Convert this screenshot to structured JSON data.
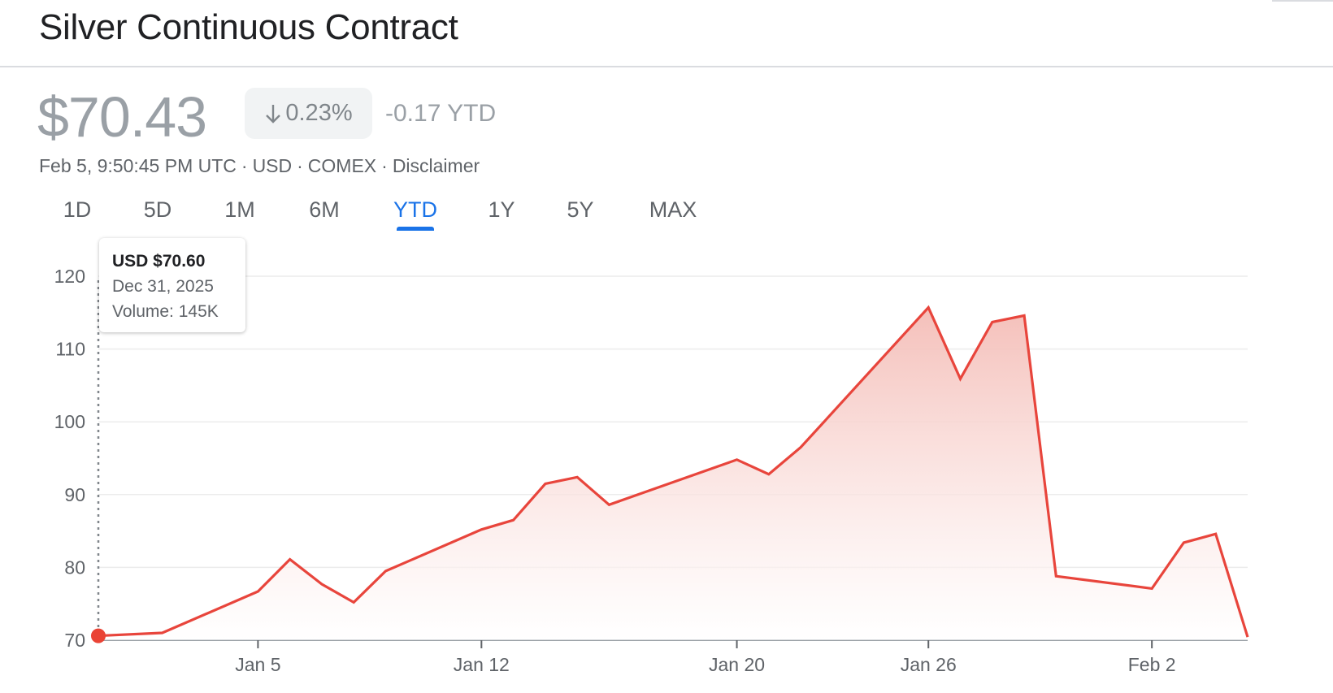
{
  "header": {
    "title": "Silver Continuous Contract"
  },
  "quote": {
    "price": "$70.43",
    "change_percent": "0.23%",
    "change_direction": "down",
    "ytd_change": "-0.17 YTD",
    "timestamp": "Feb 5, 9:50:45 PM UTC",
    "currency": "USD",
    "exchange": "COMEX",
    "disclaimer_label": "Disclaimer",
    "separator": "·"
  },
  "tabs": [
    {
      "label": "1D",
      "active": false
    },
    {
      "label": "5D",
      "active": false
    },
    {
      "label": "1M",
      "active": false
    },
    {
      "label": "6M",
      "active": false
    },
    {
      "label": "YTD",
      "active": true
    },
    {
      "label": "1Y",
      "active": false
    },
    {
      "label": "5Y",
      "active": false
    },
    {
      "label": "MAX",
      "active": false
    }
  ],
  "tooltip": {
    "price": "USD $70.60",
    "date": "Dec 31, 2025",
    "volume": "Volume: 145K"
  },
  "colors": {
    "line": "#e8453c",
    "fill_top": "#f4bcb6",
    "fill_bottom": "#ffffff",
    "grid": "#ececec",
    "axis": "#9aa0a6",
    "accent": "#1a73e8",
    "marker": "#ea4335"
  },
  "chart_data": {
    "type": "area",
    "title": "",
    "xlabel": "",
    "ylabel": "",
    "ylim": [
      70,
      120
    ],
    "xlim": [
      "2025-12-31",
      "2026-02-05"
    ],
    "yticks": [
      70,
      80,
      90,
      100,
      110,
      120
    ],
    "xticks": [
      {
        "date": "2026-01-05",
        "label": "Jan 5"
      },
      {
        "date": "2026-01-12",
        "label": "Jan 12"
      },
      {
        "date": "2026-01-20",
        "label": "Jan 20"
      },
      {
        "date": "2026-01-26",
        "label": "Jan 26"
      },
      {
        "date": "2026-02-02",
        "label": "Feb 2"
      }
    ],
    "grid": true,
    "series": [
      {
        "points": [
          {
            "date": "2025-12-31",
            "value": 70.6
          },
          {
            "date": "2026-01-02",
            "value": 71.0
          },
          {
            "date": "2026-01-05",
            "value": 76.7
          },
          {
            "date": "2026-01-06",
            "value": 81.1
          },
          {
            "date": "2026-01-07",
            "value": 77.7
          },
          {
            "date": "2026-01-08",
            "value": 75.2
          },
          {
            "date": "2026-01-09",
            "value": 79.5
          },
          {
            "date": "2026-01-12",
            "value": 85.2
          },
          {
            "date": "2026-01-13",
            "value": 86.5
          },
          {
            "date": "2026-01-14",
            "value": 91.5
          },
          {
            "date": "2026-01-15",
            "value": 92.4
          },
          {
            "date": "2026-01-16",
            "value": 88.6
          },
          {
            "date": "2026-01-20",
            "value": 94.8
          },
          {
            "date": "2026-01-21",
            "value": 92.8
          },
          {
            "date": "2026-01-22",
            "value": 96.5
          },
          {
            "date": "2026-01-23",
            "value": 101.3
          },
          {
            "date": "2026-01-26",
            "value": 115.7
          },
          {
            "date": "2026-01-27",
            "value": 105.9
          },
          {
            "date": "2026-01-28",
            "value": 113.7
          },
          {
            "date": "2026-01-29",
            "value": 114.6
          },
          {
            "date": "2026-01-30",
            "value": 78.8
          },
          {
            "date": "2026-02-02",
            "value": 77.1
          },
          {
            "date": "2026-02-03",
            "value": 83.4
          },
          {
            "date": "2026-02-04",
            "value": 84.6
          },
          {
            "date": "2026-02-05",
            "value": 70.43
          }
        ]
      }
    ],
    "highlight": {
      "date": "2025-12-31",
      "value": 70.6
    }
  }
}
